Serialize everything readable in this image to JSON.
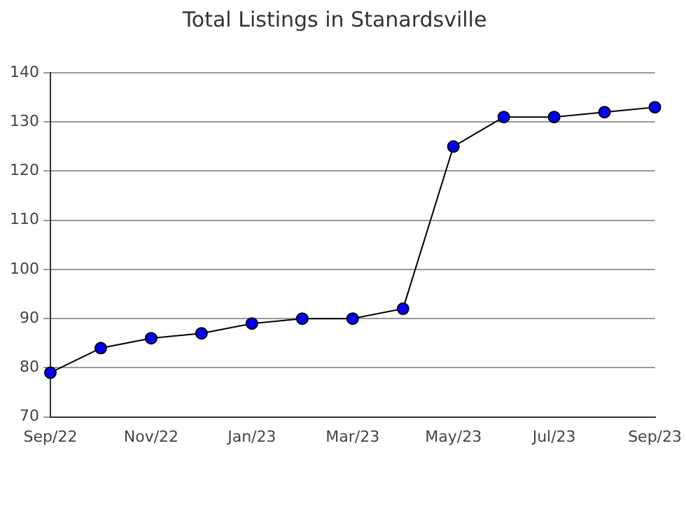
{
  "chart_data": {
    "type": "line",
    "title": "Total Listings in Stanardsville",
    "categories": [
      "Sep/22",
      null,
      "Nov/22",
      null,
      "Jan/23",
      null,
      "Mar/23",
      null,
      "May/23",
      null,
      "Jul/23",
      null,
      "Sep/23"
    ],
    "series": [
      {
        "color": "#0000ff",
        "values": [
          79,
          84,
          86,
          87,
          89,
          90,
          90,
          92,
          125,
          131,
          131,
          132,
          133
        ]
      }
    ],
    "ylim": [
      70,
      140
    ],
    "yticks": [
      70,
      80,
      90,
      100,
      110,
      120,
      130,
      140
    ],
    "grid": "y",
    "legend": false,
    "marker": "circle",
    "line_style": "solid"
  }
}
